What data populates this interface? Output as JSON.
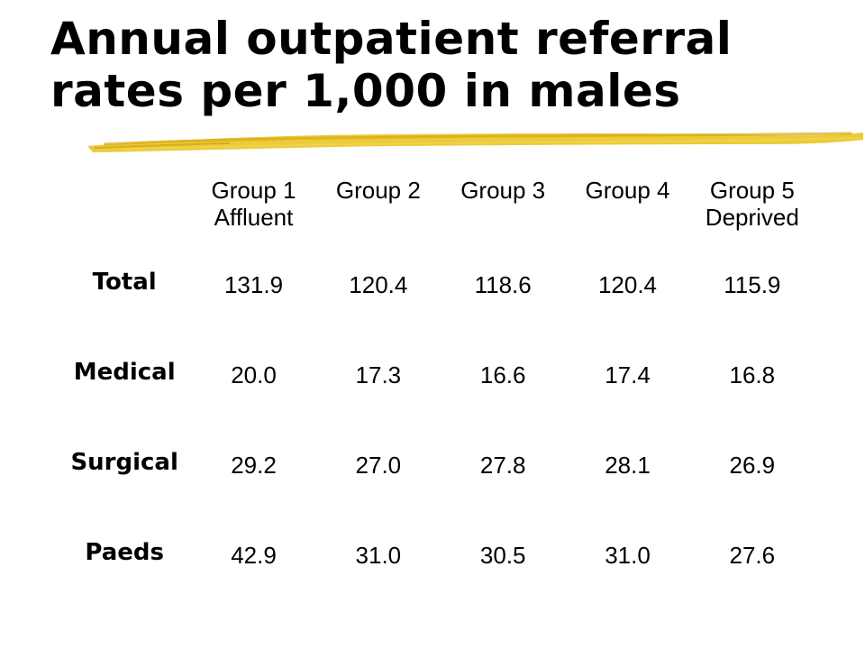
{
  "slide": {
    "title": "Annual outpatient referral rates per 1,000 in males",
    "accent_color": "#E8C21A"
  },
  "table": {
    "columns": [
      {
        "line1": "Group 1",
        "line2": "Affluent"
      },
      {
        "line1": "Group 2",
        "line2": ""
      },
      {
        "line1": "Group 3",
        "line2": ""
      },
      {
        "line1": "Group 4",
        "line2": ""
      },
      {
        "line1": "Group 5",
        "line2": "Deprived"
      }
    ],
    "rows": [
      {
        "label": "Total",
        "values": [
          "131.9",
          "120.4",
          "118.6",
          "120.4",
          "115.9"
        ]
      },
      {
        "label": "Medical",
        "values": [
          "20.0",
          "17.3",
          "16.6",
          "17.4",
          "16.8"
        ]
      },
      {
        "label": "Surgical",
        "values": [
          "29.2",
          "27.0",
          "27.8",
          "28.1",
          "26.9"
        ]
      },
      {
        "label": "Paeds",
        "values": [
          "42.9",
          "31.0",
          "30.5",
          "31.0",
          "27.6"
        ]
      }
    ]
  }
}
